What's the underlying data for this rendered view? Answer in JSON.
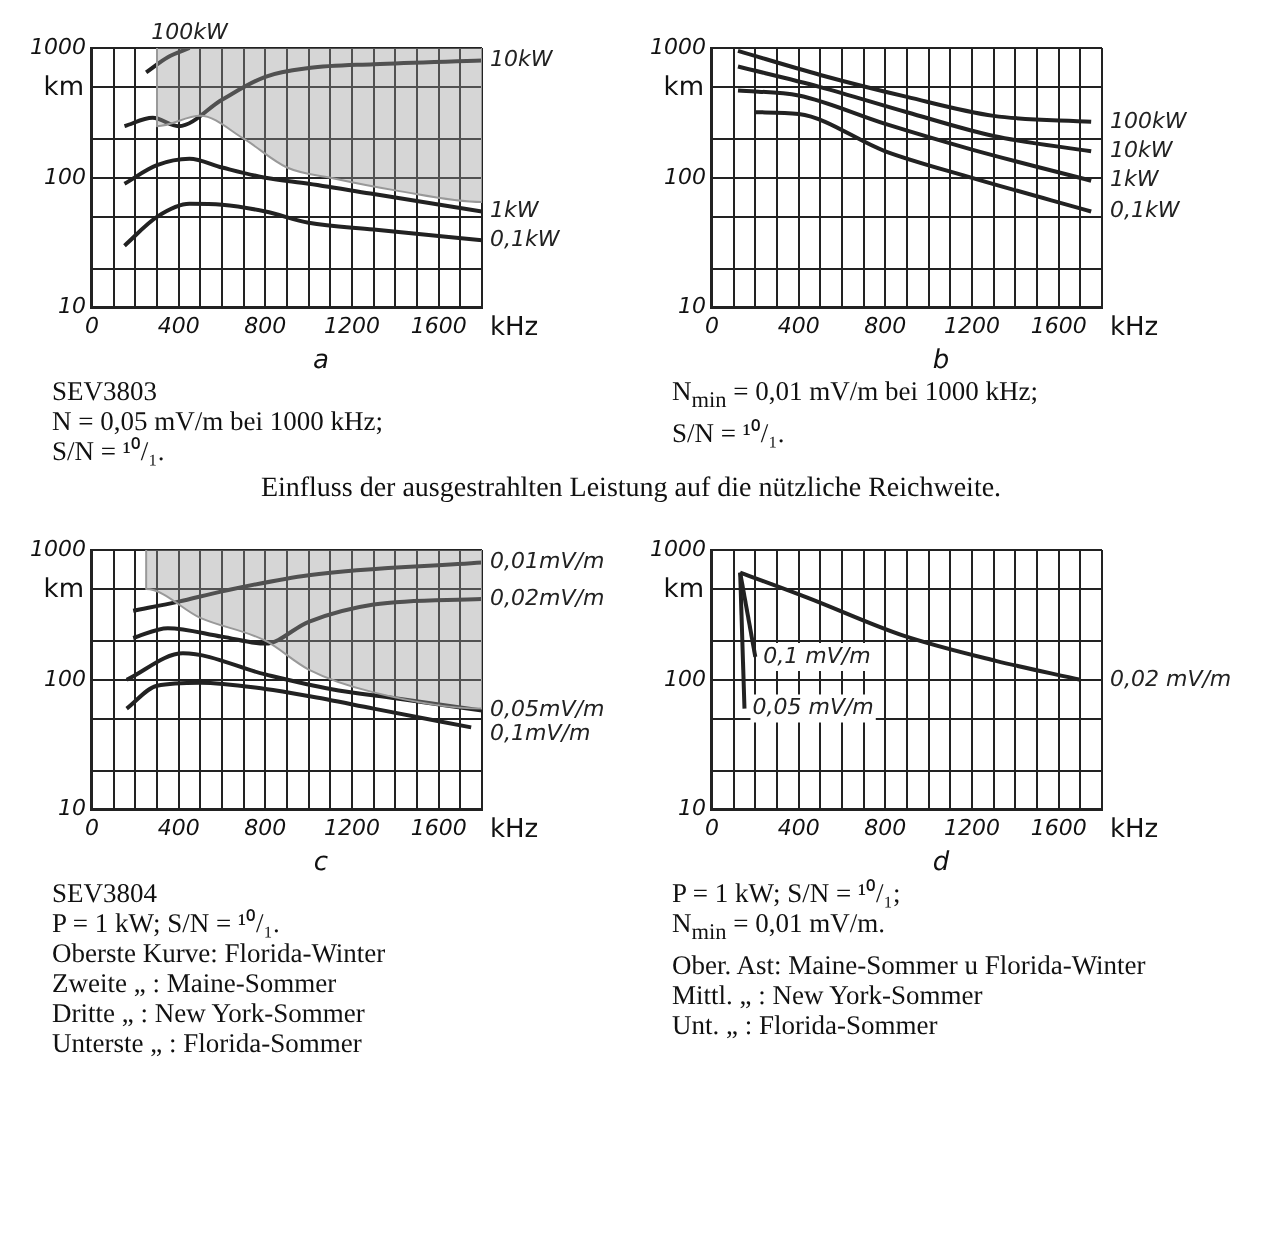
{
  "chart_data": [
    {
      "type": "line",
      "title": "a",
      "subtitle": "Einfluss der ausgestrahlten Leistung auf die nützliche Reichweite.",
      "xlabel": "kHz",
      "ylabel": "km",
      "xlim": [
        0,
        1800
      ],
      "xticks": [
        0,
        {
          "value": 100,
          "label": null
        },
        {
          "value": 200,
          "label": null
        },
        {
          "value": 300,
          "label": null
        },
        400,
        {
          "value": 500,
          "label": null
        },
        {
          "value": 600,
          "label": null
        },
        {
          "value": 700,
          "label": null
        },
        800,
        {
          "value": 900,
          "label": null
        },
        {
          "value": 1000,
          "label": null
        },
        {
          "value": 1100,
          "label": null
        },
        1200,
        {
          "value": 1300,
          "label": null
        },
        {
          "value": 1400,
          "label": null
        },
        {
          "value": 1500,
          "label": null
        },
        1600,
        {
          "value": 1700,
          "label": null
        },
        {
          "value": 1800,
          "label": null
        }
      ],
      "ylim": [
        10,
        1000
      ],
      "yticks": [
        10,
        {
          "value": 20,
          "label": null
        },
        {
          "value": 50,
          "label": null
        },
        100,
        {
          "value": 200,
          "label": null
        },
        {
          "value": 500,
          "label": null
        },
        1000
      ],
      "log": "y",
      "grid": true,
      "series": [
        {
          "type": "area",
          "color": "#999999",
          "x": [
            300,
            300,
            500,
            700,
            900,
            1100,
            1400,
            1800,
            1800
          ],
          "values": [
            1000,
            250,
            300,
            200,
            120,
            100,
            80,
            65,
            1000
          ]
        },
        {
          "name": "0,1kW",
          "color": "#222222",
          "x": [
            150,
            300,
            450,
            600,
            800,
            1000,
            1300,
            1800
          ],
          "values": [
            30,
            50,
            63,
            62,
            55,
            45,
            40,
            33
          ]
        },
        {
          "name": "1kW",
          "color": "#222222",
          "x": [
            150,
            300,
            450,
            600,
            800,
            1000,
            1300,
            1800
          ],
          "values": [
            90,
            125,
            140,
            120,
            100,
            90,
            75,
            55
          ]
        },
        {
          "name": "10kW",
          "color": "#222222",
          "x": [
            150,
            280,
            400,
            600,
            800,
            1000,
            1300,
            1800
          ],
          "values": [
            250,
            290,
            250,
            400,
            600,
            700,
            750,
            800
          ]
        },
        {
          "name": "100kW",
          "color": "#222222",
          "x": [
            250,
            350,
            450
          ],
          "values": [
            650,
            850,
            1000
          ]
        }
      ],
      "annotations": [
        "SEV3803",
        "N = 0,05 mV/m bei 1000 kHz;",
        "S/N = ¹⁰/₁."
      ]
    },
    {
      "type": "line",
      "title": "b",
      "xlabel": "kHz",
      "ylabel": "km",
      "xlim": [
        0,
        1800
      ],
      "xticks": [
        0,
        {
          "value": 100,
          "label": null
        },
        {
          "value": 200,
          "label": null
        },
        {
          "value": 300,
          "label": null
        },
        400,
        {
          "value": 500,
          "label": null
        },
        {
          "value": 600,
          "label": null
        },
        {
          "value": 700,
          "label": null
        },
        800,
        {
          "value": 900,
          "label": null
        },
        {
          "value": 1000,
          "label": null
        },
        {
          "value": 1100,
          "label": null
        },
        1200,
        {
          "value": 1300,
          "label": null
        },
        {
          "value": 1400,
          "label": null
        },
        {
          "value": 1500,
          "label": null
        },
        1600,
        {
          "value": 1700,
          "label": null
        },
        {
          "value": 1800,
          "label": null
        }
      ],
      "ylim": [
        10,
        1000
      ],
      "yticks": [
        10,
        {
          "value": 20,
          "label": null
        },
        {
          "value": 50,
          "label": null
        },
        100,
        {
          "value": 200,
          "label": null
        },
        {
          "value": 500,
          "label": null
        },
        1000
      ],
      "log": "y",
      "grid": true,
      "series": [
        {
          "name": "100kW",
          "color": "#222222",
          "x": [
            120,
            500,
            900,
            1300,
            1750
          ],
          "values": [
            950,
            620,
            420,
            300,
            270
          ]
        },
        {
          "name": "10kW",
          "color": "#222222",
          "x": [
            120,
            500,
            900,
            1300,
            1750
          ],
          "values": [
            720,
            500,
            320,
            210,
            160
          ]
        },
        {
          "name": "1kW",
          "color": "#222222",
          "x": [
            120,
            400,
            800,
            1200,
            1750
          ],
          "values": [
            470,
            430,
            260,
            165,
            95
          ]
        },
        {
          "name": "0,1kW",
          "color": "#222222",
          "x": [
            200,
            400,
            800,
            1200,
            1750
          ],
          "values": [
            320,
            310,
            160,
            100,
            55
          ]
        }
      ],
      "annotations": [
        "N$_{min}$ = 0,01 mV/m bei 1000 kHz;",
        "S/N = ¹⁰/₁."
      ]
    },
    {
      "type": "line",
      "title": "c",
      "xlabel": "kHz",
      "ylabel": "km",
      "xlim": [
        0,
        1800
      ],
      "xticks": [
        0,
        {
          "value": 100,
          "label": null
        },
        {
          "value": 200,
          "label": null
        },
        {
          "value": 300,
          "label": null
        },
        400,
        {
          "value": 500,
          "label": null
        },
        {
          "value": 600,
          "label": null
        },
        {
          "value": 700,
          "label": null
        },
        800,
        {
          "value": 900,
          "label": null
        },
        {
          "value": 1000,
          "label": null
        },
        {
          "value": 1100,
          "label": null
        },
        1200,
        {
          "value": 1300,
          "label": null
        },
        {
          "value": 1400,
          "label": null
        },
        {
          "value": 1500,
          "label": null
        },
        1600,
        {
          "value": 1700,
          "label": null
        },
        {
          "value": 1800,
          "label": null
        }
      ],
      "ylim": [
        10,
        1000
      ],
      "yticks": [
        10,
        {
          "value": 20,
          "label": null
        },
        {
          "value": 50,
          "label": null
        },
        100,
        {
          "value": 200,
          "label": null
        },
        {
          "value": 500,
          "label": null
        },
        1000
      ],
      "log": "y",
      "grid": true,
      "series": [
        {
          "type": "area",
          "color": "#999999",
          "x": [
            250,
            250,
            500,
            800,
            1000,
            1300,
            1800,
            1800
          ],
          "values": [
            1000,
            500,
            300,
            200,
            120,
            80,
            60,
            1000
          ]
        },
        {
          "name": "0,1mV/m",
          "color": "#222222",
          "x": [
            160,
            300,
            500,
            800,
            1000,
            1300,
            1750
          ],
          "values": [
            60,
            90,
            95,
            85,
            75,
            60,
            43
          ]
        },
        {
          "name": "0,05mV/m",
          "color": "#222222",
          "x": [
            160,
            420,
            800,
            1100,
            1400,
            1800
          ],
          "values": [
            100,
            160,
            110,
            85,
            72,
            58
          ]
        },
        {
          "name": "0,02mV/m",
          "color": "#222222",
          "x": [
            190,
            350,
            600,
            800,
            1000,
            1300,
            1800
          ],
          "values": [
            210,
            250,
            215,
            190,
            280,
            380,
            420
          ]
        },
        {
          "name": "0,01mV/m",
          "color": "#222222",
          "x": [
            190,
            400,
            600,
            1000,
            1800
          ],
          "values": [
            340,
            400,
            480,
            640,
            800
          ]
        }
      ],
      "annotations": [
        "SEV3804",
        "P = 1 kW; S/N = ¹⁰/₁.",
        "Oberste Kurve: Florida-Winter",
        "Zweite „ : Maine-Sommer",
        "Dritte „ : New York-Sommer",
        "Unterste „ : Florida-Sommer"
      ]
    },
    {
      "type": "line",
      "title": "d",
      "xlabel": "kHz",
      "ylabel": "km",
      "xlim": [
        0,
        1800
      ],
      "xticks": [
        0,
        {
          "value": 100,
          "label": null
        },
        {
          "value": 200,
          "label": null
        },
        {
          "value": 300,
          "label": null
        },
        400,
        {
          "value": 500,
          "label": null
        },
        {
          "value": 600,
          "label": null
        },
        {
          "value": 700,
          "label": null
        },
        800,
        {
          "value": 900,
          "label": null
        },
        {
          "value": 1000,
          "label": null
        },
        {
          "value": 1100,
          "label": null
        },
        1200,
        {
          "value": 1300,
          "label": null
        },
        {
          "value": 1400,
          "label": null
        },
        {
          "value": 1500,
          "label": null
        },
        1600,
        {
          "value": 1700,
          "label": null
        },
        {
          "value": 1800,
          "label": null
        }
      ],
      "ylim": [
        10,
        1000
      ],
      "yticks": [
        10,
        {
          "value": 20,
          "label": null
        },
        {
          "value": 50,
          "label": null
        },
        100,
        {
          "value": 200,
          "label": null
        },
        {
          "value": 500,
          "label": null
        },
        1000
      ],
      "log": "y",
      "grid": true,
      "series": [
        {
          "name": "0,02 mV/m",
          "color": "#222222",
          "x": [
            130,
            440,
            880,
            1310,
            1700
          ],
          "values": [
            670,
            430,
            220,
            140,
            100
          ]
        },
        {
          "name": "0,1 mV/m",
          "color": "#222222",
          "x": [
            130,
            200
          ],
          "values": [
            670,
            150
          ]
        },
        {
          "name": "0,05 mV/m",
          "color": "#222222",
          "x": [
            130,
            150
          ],
          "values": [
            670,
            60
          ]
        }
      ],
      "annotations": [
        "P = 1 kW; S/N = ¹⁰/₁;",
        "N$_{min}$ = 0,01 mV/m.",
        "Ober. Ast: Maine-Sommer u Florida-Winter",
        "Mittl. „ : New York-Sommer",
        "Unt. „ : Florida-Sommer"
      ]
    }
  ]
}
